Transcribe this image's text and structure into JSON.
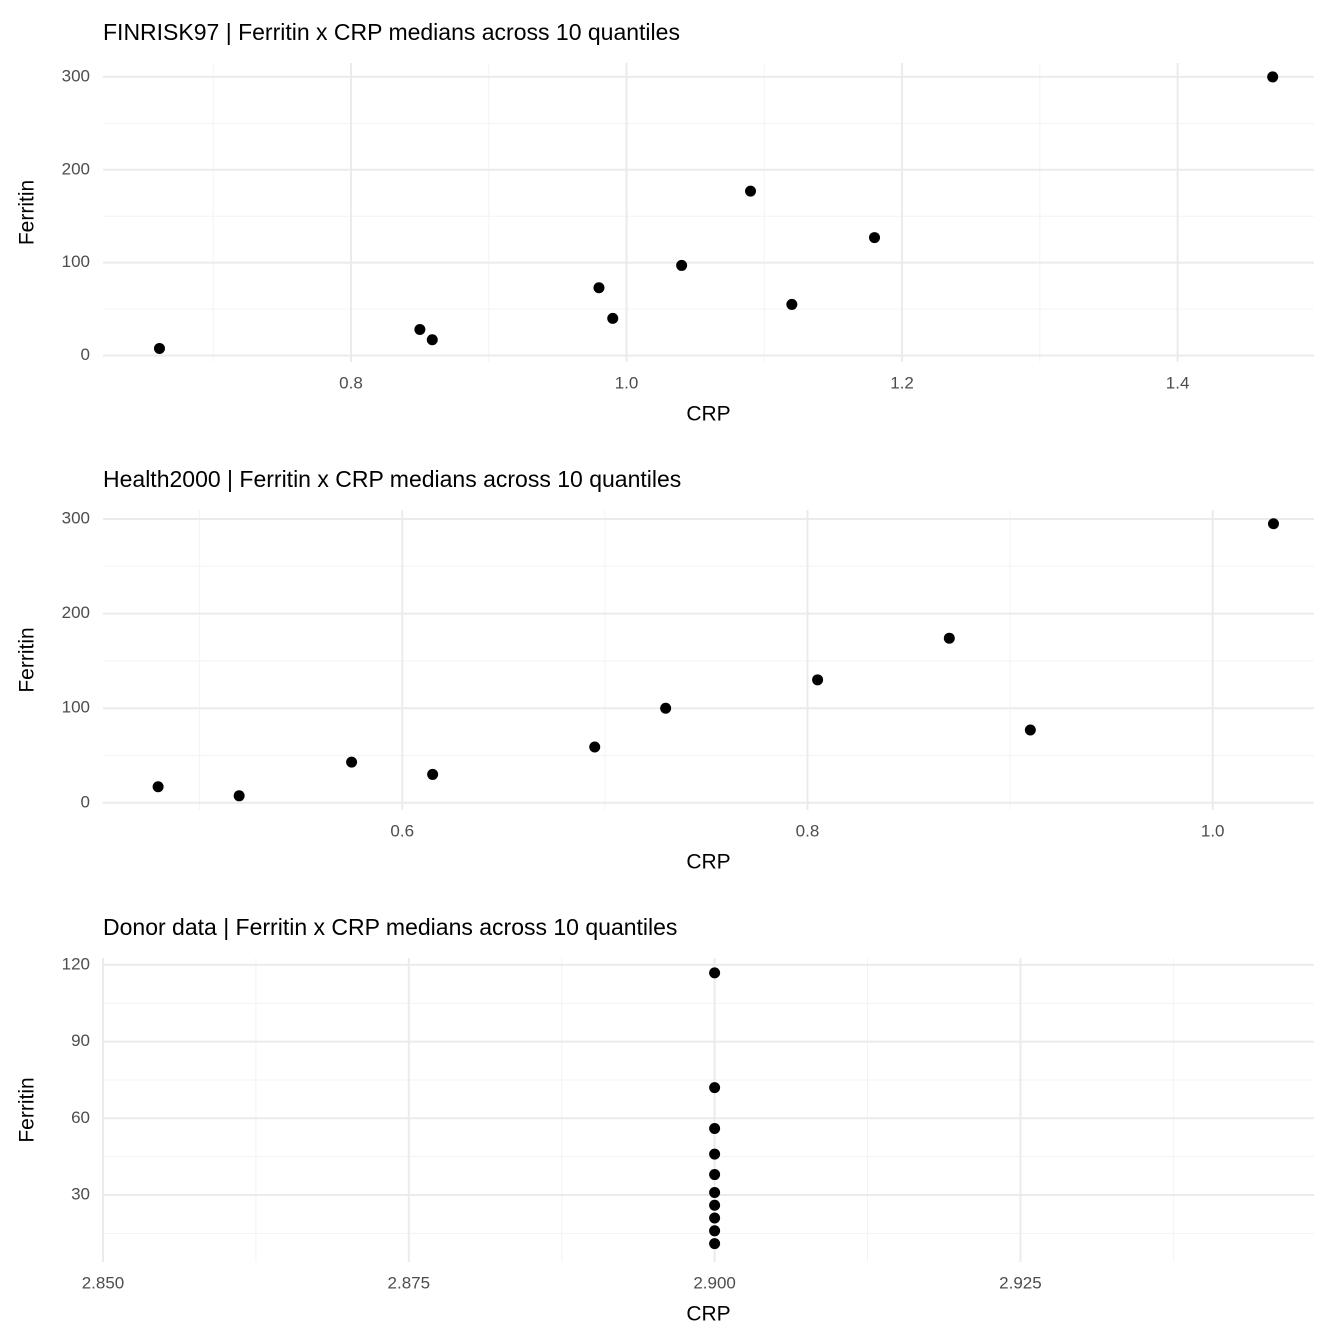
{
  "chart_data": [
    {
      "type": "scatter",
      "title": "FINRISK97 | Ferritin x CRP medians across 10 quantiles",
      "x_label": "CRP",
      "y_label": "Ferritin",
      "x": [
        0.661,
        0.85,
        0.859,
        0.98,
        0.99,
        1.04,
        1.09,
        1.12,
        1.18,
        1.469
      ],
      "values": [
        7.6,
        28,
        17,
        73,
        40,
        97,
        177,
        55,
        127,
        300
      ],
      "color": "#000000",
      "grid": true,
      "xlim": [
        0.62,
        1.499
      ],
      "xticks": [
        0.8,
        {
          "value": 1.0,
          "label": "1.0"
        },
        1.2,
        1.4
      ],
      "ylim": [
        -7,
        315
      ],
      "yticks": [
        0,
        100,
        200,
        300
      ]
    },
    {
      "type": "scatter",
      "title": "Health2000 | Ferritin x CRP medians across 10 quantiles",
      "x_label": "CRP",
      "y_label": "Ferritin",
      "x": [
        0.4795,
        0.5195,
        0.575,
        0.615,
        0.695,
        0.73,
        0.805,
        0.87,
        0.91,
        1.03
      ],
      "values": [
        17,
        7.4,
        43,
        30,
        59,
        100,
        130,
        174,
        77,
        295
      ],
      "color": "#000000",
      "grid": true,
      "xlim": [
        0.4523,
        1.05
      ],
      "xticks": [
        0.6,
        0.8,
        {
          "value": 1.0,
          "label": "1.0"
        }
      ],
      "ylim": [
        -7.6,
        309.5
      ],
      "yticks": [
        0,
        100,
        200,
        300
      ]
    },
    {
      "type": "scatter",
      "title": "Donor data | Ferritin x CRP medians across 10 quantiles",
      "x_label": "CRP",
      "y_label": "Ferritin",
      "x": [
        2.9,
        2.9,
        2.9,
        2.9,
        2.9,
        2.9,
        2.9,
        2.9,
        2.9,
        2.9
      ],
      "values": [
        116.9,
        72,
        56,
        46,
        38,
        31,
        26,
        21,
        16,
        11
      ],
      "color": "#000000",
      "grid": true,
      "xlim": [
        2.85,
        2.949
      ],
      "xticks": [
        {
          "value": 2.85,
          "label": "2.850"
        },
        {
          "value": 2.875,
          "label": "2.875"
        },
        {
          "value": 2.9,
          "label": "2.900"
        },
        {
          "value": 2.925,
          "label": "2.925"
        }
      ],
      "ylim": [
        3.8,
        122.7
      ],
      "yticks": [
        30,
        60,
        90,
        120
      ]
    }
  ]
}
